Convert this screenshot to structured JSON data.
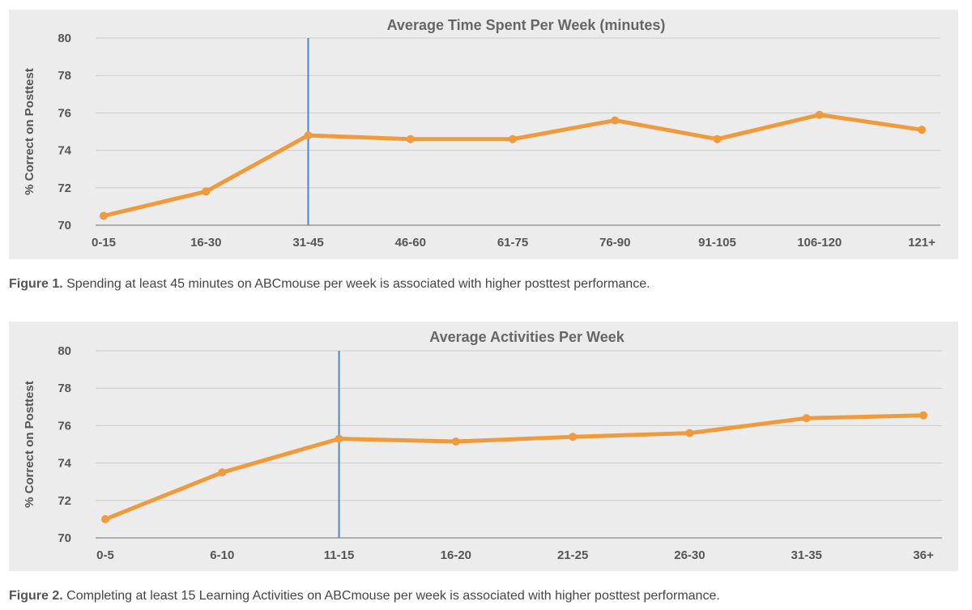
{
  "chart_data": [
    {
      "type": "line",
      "title": "Average Time Spent Per Week (minutes)",
      "ylabel": "% Correct on Posttest",
      "xlabel": "",
      "categories": [
        "0-15",
        "16-30",
        "31-45",
        "46-60",
        "61-75",
        "76-90",
        "91-105",
        "106-120",
        "121+"
      ],
      "values": [
        70.5,
        71.8,
        74.8,
        74.6,
        74.6,
        75.6,
        74.6,
        75.9,
        75.1
      ],
      "ylim": [
        70,
        80
      ],
      "yticks": [
        70,
        72,
        74,
        76,
        78,
        80
      ],
      "grid": true,
      "reference_line_category": "31-45",
      "colors": {
        "line": "#f09a3e",
        "reference": "#4a86c8",
        "grid": "#cccccc",
        "axis": "#999999"
      }
    },
    {
      "type": "line",
      "title": "Average Activities Per Week",
      "ylabel": "% Correct on Posttest",
      "xlabel": "",
      "categories": [
        "0-5",
        "6-10",
        "11-15",
        "16-20",
        "21-25",
        "26-30",
        "31-35",
        "36+"
      ],
      "values": [
        71.0,
        73.5,
        75.3,
        75.15,
        75.4,
        75.6,
        76.4,
        76.55
      ],
      "ylim": [
        70,
        80
      ],
      "yticks": [
        70,
        72,
        74,
        76,
        78,
        80
      ],
      "grid": true,
      "reference_line_category": "11-15",
      "colors": {
        "line": "#f09a3e",
        "reference": "#4a86c8",
        "grid": "#cccccc",
        "axis": "#999999"
      }
    }
  ],
  "captions": [
    {
      "label": "Figure 1.",
      "text": " Spending at least 45 minutes on ABCmouse per week is associated with higher posttest performance."
    },
    {
      "label": "Figure 2.",
      "text": " Completing at least 15 Learning Activities on ABCmouse per week is associated with higher posttest performance."
    }
  ]
}
